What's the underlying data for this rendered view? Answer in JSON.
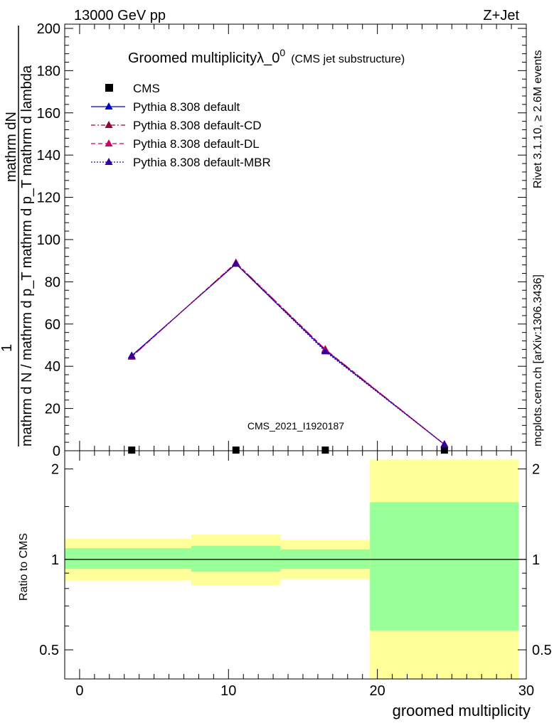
{
  "header": {
    "energy": "13000 GeV pp",
    "process": "Z+Jet"
  },
  "side_labels": {
    "rivet": "Rivet 3.1.10, ≥ 2.6M events",
    "mcplots": "mcplots.cern.ch [arXiv:1306.3436]"
  },
  "chart_data": [
    {
      "type": "line",
      "title": "Groomed multiplicityλ_0",
      "title_superscript": "0",
      "subtitle": "(CMS jet substructure)",
      "watermark": "CMS_2021_I1920187",
      "ylabel_numerator": "mathrm dN",
      "ylabel_prefix": "1",
      "ylabel_denominator": "mathrm d N / mathrm d p_T mathrm d p_T mathrm d lambda",
      "ylim": [
        0,
        202
      ],
      "yticks": [
        0,
        20,
        40,
        60,
        80,
        100,
        120,
        140,
        160,
        180,
        200
      ],
      "xlim": [
        -1,
        30
      ],
      "x_bin_edges": [
        -1,
        7.5,
        13.5,
        19.5,
        29.5
      ],
      "x": [
        3.5,
        10.5,
        16.5,
        24.5
      ],
      "grid": false,
      "legend_position": "top-left",
      "series": [
        {
          "name": "CMS",
          "style": "markers",
          "marker": "square",
          "color": "#000000",
          "values": [
            0.3,
            0.3,
            0.3,
            0.3
          ]
        },
        {
          "name": "Pythia 8.308 default",
          "style": "solid",
          "marker": "triangle",
          "color": "#0000cc",
          "values": [
            45,
            88.5,
            47.5,
            3
          ]
        },
        {
          "name": "Pythia 8.308 default-CD",
          "style": "dashdot",
          "marker": "triangle",
          "color": "#990033",
          "values": [
            44.5,
            89,
            48,
            3
          ]
        },
        {
          "name": "Pythia 8.308 default-DL",
          "style": "dashed",
          "marker": "triangle",
          "color": "#cc0066",
          "values": [
            44.5,
            89,
            48,
            3
          ]
        },
        {
          "name": "Pythia 8.308 default-MBR",
          "style": "dotted",
          "marker": "triangle",
          "color": "#330099",
          "values": [
            45,
            88.5,
            47,
            3
          ]
        }
      ]
    },
    {
      "type": "area",
      "ylabel": "Ratio to CMS",
      "xlabel": "groomed multiplicity",
      "y_scale": "log",
      "ylim": [
        0.4,
        2.3
      ],
      "yticks": [
        0.5,
        1,
        2
      ],
      "xlim": [
        -1,
        30
      ],
      "xticks": [
        0,
        10,
        20,
        30
      ],
      "bands": [
        {
          "x": [
            -1,
            7.5
          ],
          "inner": [
            0.93,
            1.09
          ],
          "outer": [
            0.85,
            1.17
          ]
        },
        {
          "x": [
            7.5,
            13.5
          ],
          "inner": [
            0.91,
            1.11
          ],
          "outer": [
            0.82,
            1.21
          ]
        },
        {
          "x": [
            13.5,
            19.5
          ],
          "inner": [
            0.93,
            1.08
          ],
          "outer": [
            0.86,
            1.16
          ]
        },
        {
          "x": [
            19.5,
            29.5
          ],
          "inner": [
            0.58,
            1.55
          ],
          "outer": [
            0.4,
            2.15
          ]
        }
      ],
      "reference_line": 1,
      "band_colors": {
        "inner": "#99ff99",
        "outer": "#ffff99"
      }
    }
  ]
}
